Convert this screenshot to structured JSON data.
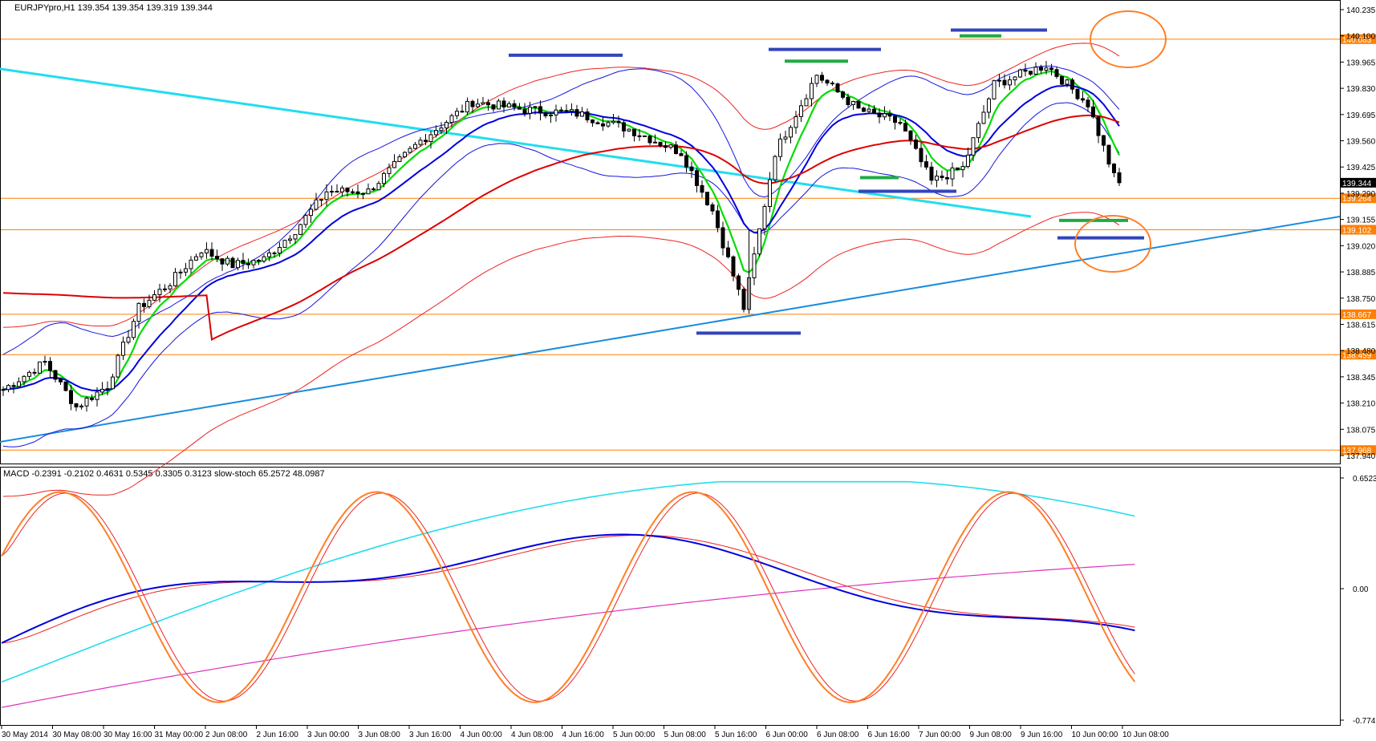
{
  "chart_data": [
    {
      "type": "candlestick",
      "title": "EURJPYpro,H1  139.354 139.354 139.319 139.344",
      "ylim": [
        137.94,
        140.235
      ],
      "y_ticks": [
        "140.235",
        "140.100",
        "139.965",
        "139.830",
        "139.695",
        "139.560",
        "139.425",
        "139.290",
        "139.155",
        "139.020",
        "138.885",
        "138.750",
        "138.615",
        "138.480",
        "138.345",
        "138.210",
        "138.075",
        "137.940"
      ],
      "current_price": "139.344",
      "x_ticks": [
        "30 May 2014",
        "30 May 08:00",
        "30 May 16:00",
        "31 May 00:00",
        "2 Jun 08:00",
        "2 Jun 16:00",
        "3 Jun 00:00",
        "3 Jun 08:00",
        "3 Jun 16:00",
        "4 Jun 00:00",
        "4 Jun 08:00",
        "4 Jun 16:00",
        "5 Jun 00:00",
        "5 Jun 08:00",
        "5 Jun 16:00",
        "6 Jun 00:00",
        "6 Jun 08:00",
        "6 Jun 16:00",
        "7 Jun 00:00",
        "9 Jun 08:00",
        "9 Jun 16:00",
        "10 Jun 00:00",
        "10 Jun 08:00"
      ],
      "levels": [
        {
          "value": 140.083,
          "label": "140.083"
        },
        {
          "value": 139.264,
          "label": "139.264"
        },
        {
          "value": 139.102,
          "label": "139.102"
        },
        {
          "value": 138.667,
          "label": "138.667"
        },
        {
          "value": 138.459,
          "label": "138.459"
        },
        {
          "value": 137.968,
          "label": "137.968"
        }
      ],
      "colors": {
        "candle": "#000000",
        "ema_fast": "#00dd00",
        "ema_mid": "#0000dd",
        "ema_slow": "#dd0000",
        "bollinger": "#1515dd",
        "envelope": "#ee2222",
        "trend_cyan": "#22ddee",
        "trend_blue": "#1a8cdd",
        "level_line": "#ff8000",
        "highlight_circle": "#ff7f27"
      }
    },
    {
      "type": "line",
      "title": "MACD -0.2391 -0.2102 0.4631 0.5345 0.3305 0.3123  slow-stoch 65.2572 48.0987",
      "ylim": [
        -0.7747,
        0.6523
      ],
      "y_ticks": [
        "0.6523",
        "0.00",
        "-0.7747"
      ],
      "colors": {
        "macd": "#0000dd",
        "signal": "#ee2222",
        "stoch_main": "#ff7f27",
        "stoch_signal": "#ee2222",
        "cyan": "#22ddee",
        "magenta": "#dd33bb"
      }
    }
  ]
}
